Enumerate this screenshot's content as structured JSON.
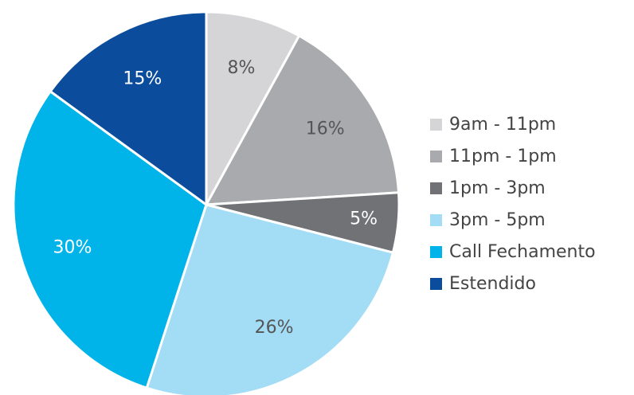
{
  "chart_data": {
    "type": "pie",
    "categories": [
      "9am - 11pm",
      "11pm - 1pm",
      "1pm - 3pm",
      "3pm - 5pm",
      "Call Fechamento",
      "Estendido"
    ],
    "values": [
      8,
      16,
      5,
      26,
      30,
      15
    ],
    "value_labels": [
      "8%",
      "16%",
      "5%",
      "26%",
      "30%",
      "15%"
    ],
    "colors": [
      "#d5d5d7",
      "#a9aaad",
      "#717275",
      "#a3dcf5",
      "#00b4ea",
      "#0b4c9c"
    ],
    "legend": "right"
  }
}
